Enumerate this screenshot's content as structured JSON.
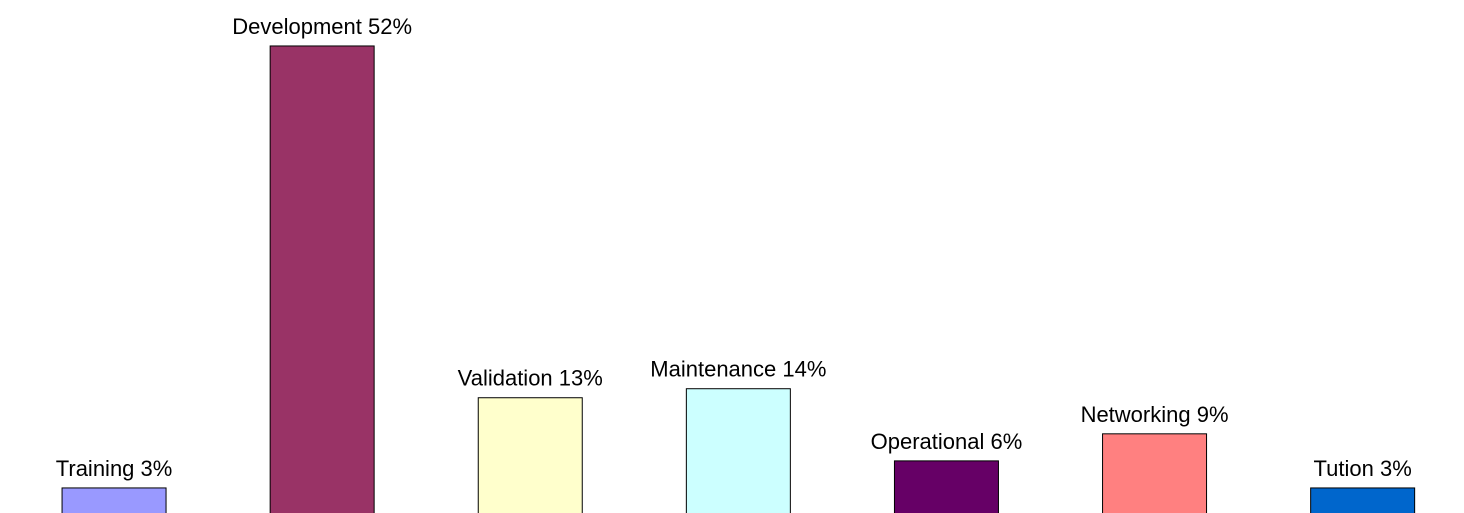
{
  "chart_data": {
    "type": "bar",
    "values": [
      3,
      52,
      13,
      14,
      6,
      9,
      3
    ],
    "value_labels": [
      "Training 3%",
      "Development 52%",
      "Validation 13%",
      "Maintenance 14%",
      "Operational 6%",
      "Networking 9%",
      "Tution 3%"
    ],
    "colors": [
      "#9999ff",
      "#993366",
      "#ffffcc",
      "#ccffff",
      "#660066",
      "#ff8080",
      "#0066cc"
    ]
  }
}
